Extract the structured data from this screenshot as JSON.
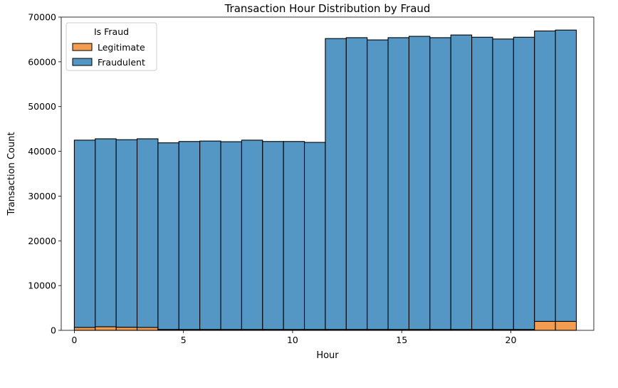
{
  "chart_data": {
    "type": "bar",
    "subtype": "stacked-histogram",
    "title": "Transaction Hour Distribution by Fraud",
    "xlabel": "Hour",
    "ylabel": "Transaction Count",
    "xlim": [
      -0.6,
      23.8
    ],
    "ylim": [
      0,
      70000
    ],
    "xticks": [
      0,
      5,
      10,
      15,
      20
    ],
    "yticks": [
      0,
      10000,
      20000,
      30000,
      40000,
      50000,
      60000,
      70000
    ],
    "bin_edges": [
      0,
      0.9583,
      1.9167,
      2.875,
      3.8333,
      4.7917,
      5.75,
      6.7083,
      7.6667,
      8.625,
      9.5833,
      10.5417,
      11.5,
      12.4583,
      13.4167,
      14.375,
      15.3333,
      16.2917,
      17.25,
      18.2083,
      19.1667,
      20.125,
      21.0833,
      22.0417,
      23
    ],
    "series": [
      {
        "name": "Legitimate",
        "color": "#f39c4f",
        "values": [
          650,
          800,
          700,
          650,
          200,
          200,
          200,
          200,
          200,
          200,
          200,
          200,
          200,
          200,
          200,
          200,
          200,
          200,
          200,
          200,
          200,
          200,
          2000,
          2000
        ]
      },
      {
        "name": "Fraudulent",
        "color": "#5497c5",
        "values": [
          41850,
          42000,
          41900,
          42150,
          41700,
          42000,
          42100,
          41950,
          42300,
          42000,
          42000,
          41800,
          65000,
          65200,
          64700,
          65200,
          65500,
          65200,
          65800,
          65300,
          64900,
          65300,
          64900,
          65100
        ]
      }
    ],
    "legend": {
      "title": "Is Fraud",
      "entries": [
        "Legitimate",
        "Fraudulent"
      ],
      "position": "top-left"
    },
    "grid": false
  }
}
